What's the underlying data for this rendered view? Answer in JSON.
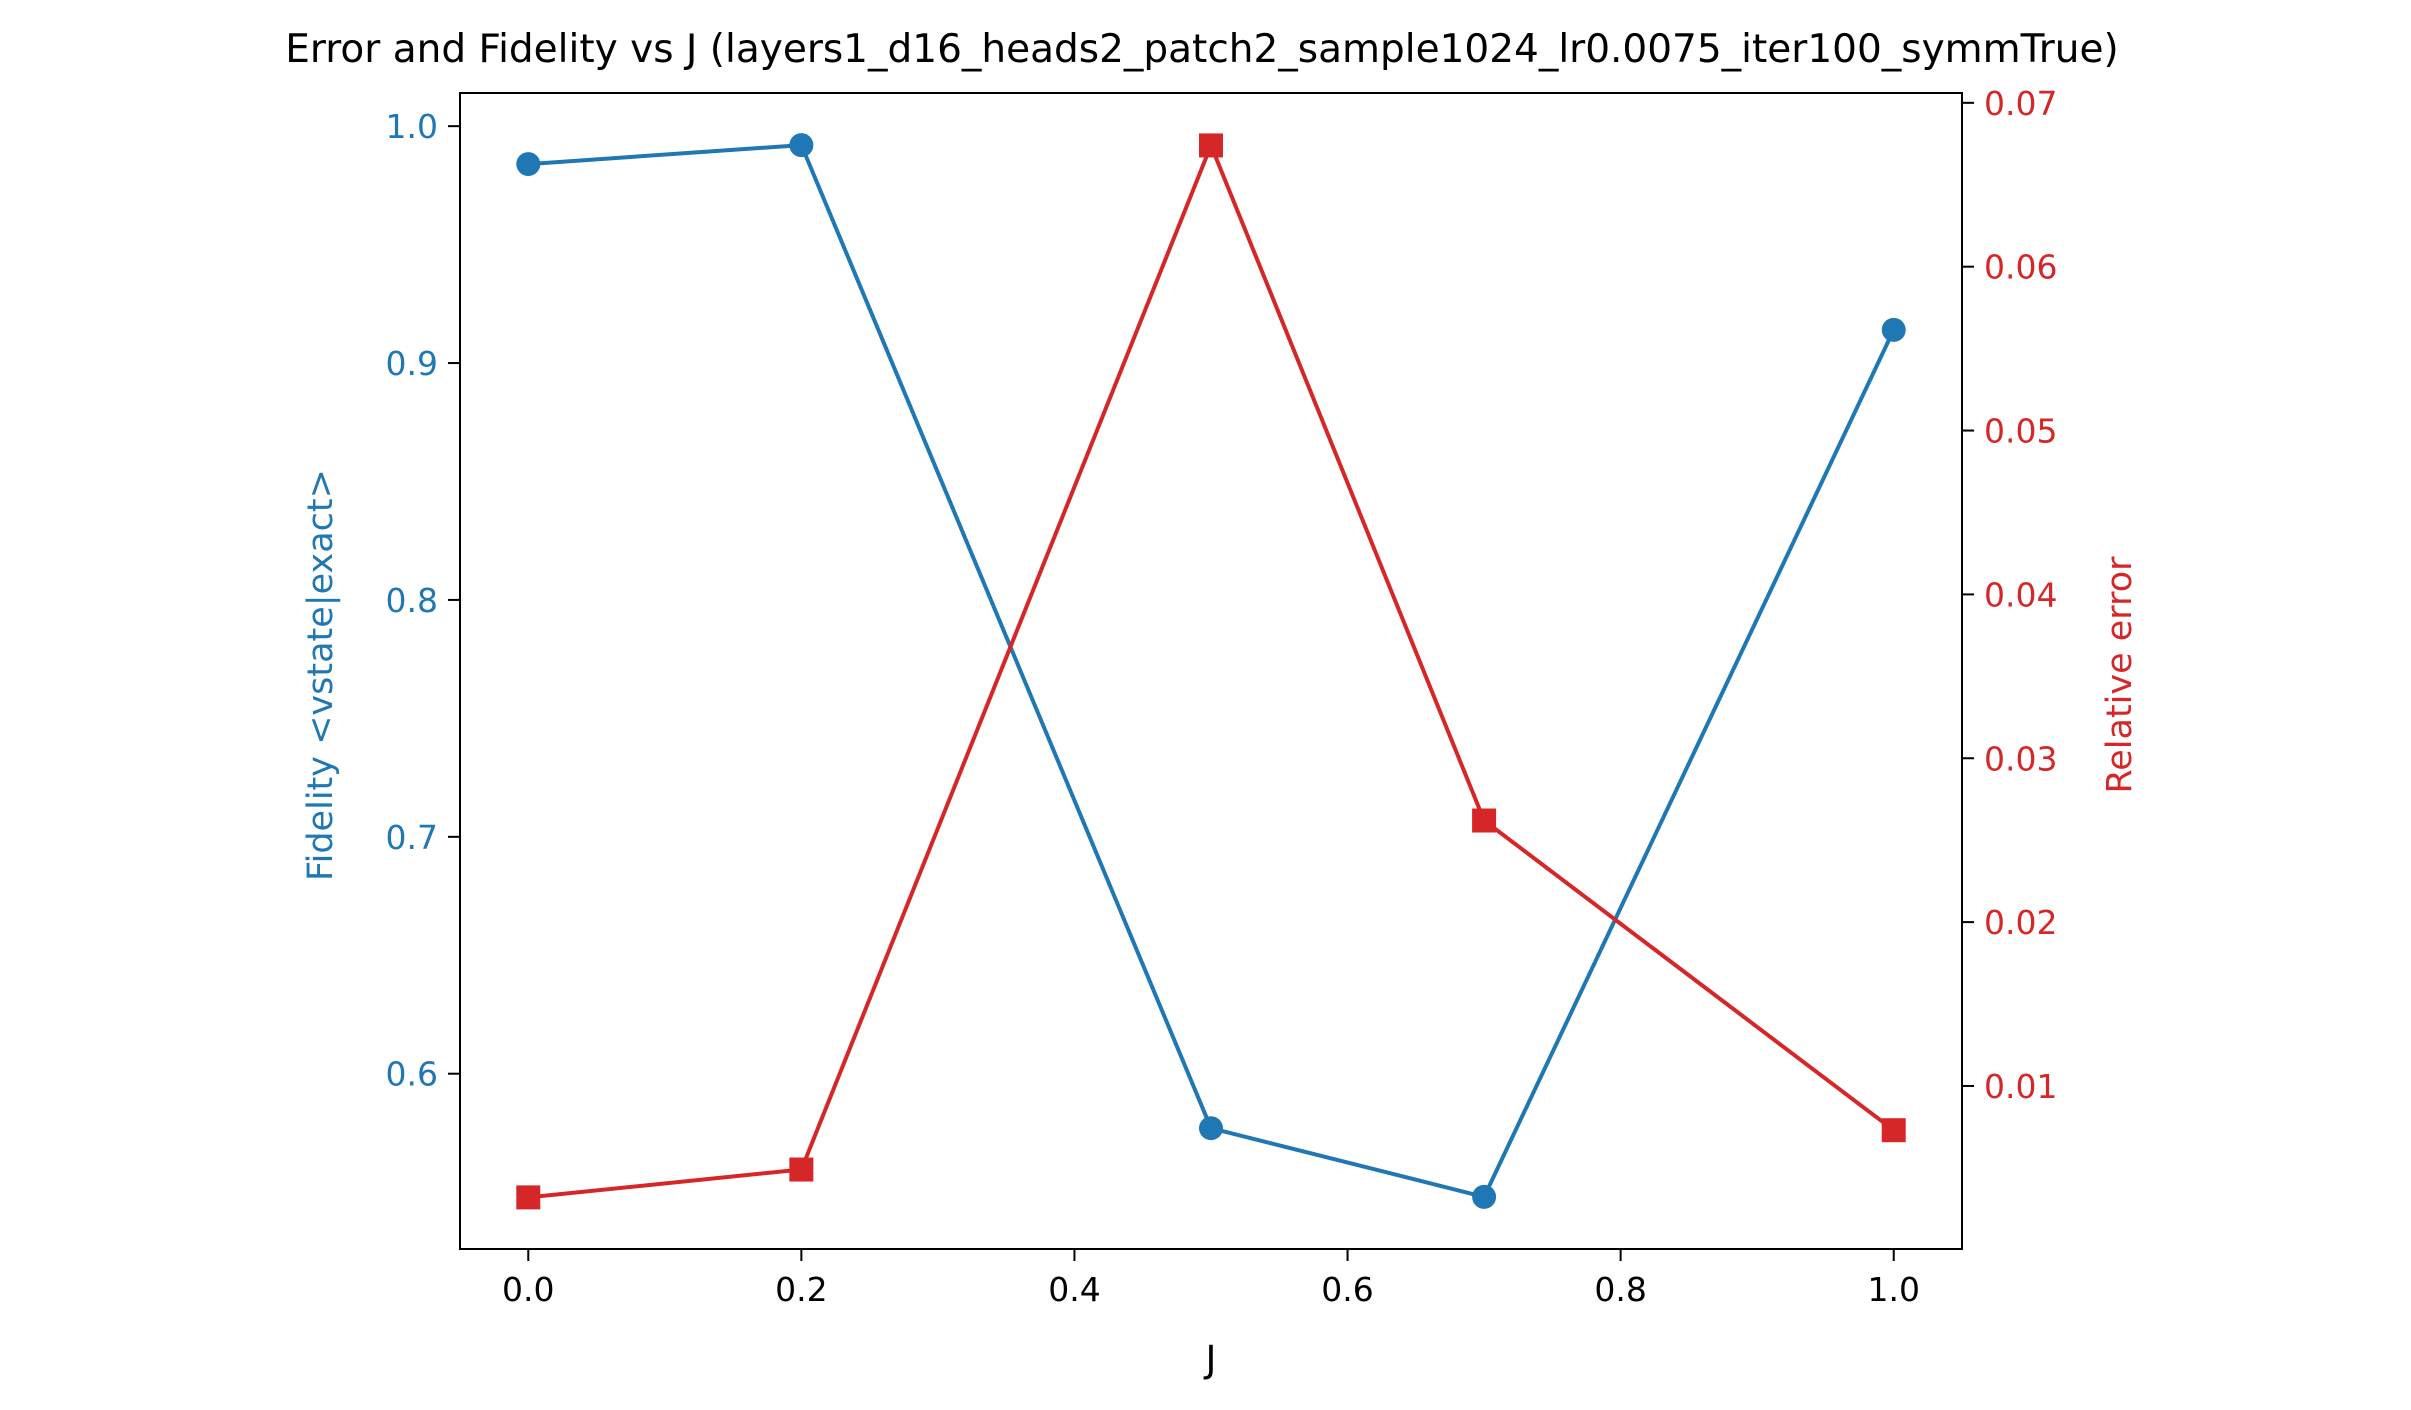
{
  "chart_data": {
    "type": "line",
    "title": "Error and Fidelity vs J (layers1_d16_heads2_patch2_sample1024_lr0.0075_iter100_symmTrue)",
    "xlabel": "J",
    "x": [
      0.0,
      0.2,
      0.5,
      0.7,
      1.0
    ],
    "xlim": [
      -0.05,
      1.05
    ],
    "xticks": [
      0.0,
      0.2,
      0.4,
      0.6,
      0.8,
      1.0
    ],
    "xtick_labels": [
      "0.0",
      "0.2",
      "0.4",
      "0.6",
      "0.8",
      "1.0"
    ],
    "series": [
      {
        "axis": "left",
        "label": "Fidelity <vstate|exact>",
        "color": "#1f77b4",
        "marker": "circle",
        "values": [
          0.984,
          0.992,
          0.577,
          0.548,
          0.914
        ]
      },
      {
        "axis": "right",
        "label": "Relative error",
        "color": "#d62728",
        "marker": "square",
        "values": [
          0.0032,
          0.0049,
          0.0674,
          0.0262,
          0.0073
        ]
      }
    ],
    "y_left": {
      "label": "Fidelity <vstate|exact>",
      "lim": [
        0.526,
        1.014
      ],
      "ticks": [
        0.6,
        0.7,
        0.8,
        0.9,
        1.0
      ],
      "tick_labels": [
        "0.6",
        "0.7",
        "0.8",
        "0.9",
        "1.0"
      ],
      "color": "#1f77b4"
    },
    "y_right": {
      "label": "Relative error",
      "lim": [
        5e-05,
        0.0706
      ],
      "ticks": [
        0.01,
        0.02,
        0.03,
        0.04,
        0.05,
        0.06,
        0.07
      ],
      "tick_labels": [
        "0.01",
        "0.02",
        "0.03",
        "0.04",
        "0.05",
        "0.06",
        "0.07"
      ],
      "color": "#d62728"
    },
    "grid": false,
    "legend": "none"
  }
}
